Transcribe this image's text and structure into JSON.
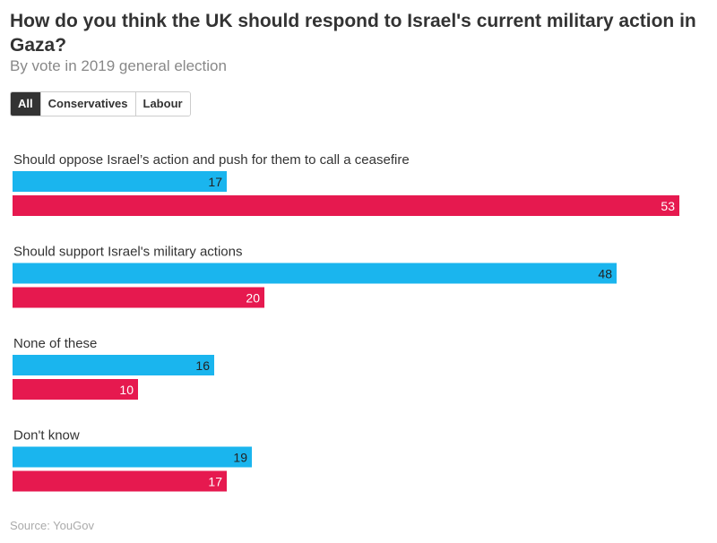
{
  "header": {
    "title": "How do you think the UK should respond to Israel's current military action in Gaza?",
    "subtitle": "By vote in 2019 general election"
  },
  "tabs": [
    {
      "label": "All",
      "active": true
    },
    {
      "label": "Conservatives",
      "active": false
    },
    {
      "label": "Labour",
      "active": false
    }
  ],
  "footer": {
    "source": "Source: YouGov"
  },
  "chart_data": {
    "type": "bar",
    "orientation": "horizontal",
    "categories": [
      "Should oppose Israel’s action and push for them to call a ceasefire",
      "Should support Israel's military actions",
      "None of these",
      "Don't know"
    ],
    "series": [
      {
        "name": "Conservatives",
        "color": "#1ab5ee",
        "label_color": "#222222",
        "values": [
          17,
          48,
          16,
          19
        ]
      },
      {
        "name": "Labour",
        "color": "#e6194f",
        "label_color": "#ffffff",
        "values": [
          53,
          20,
          10,
          17
        ]
      }
    ],
    "xlim": [
      0,
      53
    ]
  }
}
